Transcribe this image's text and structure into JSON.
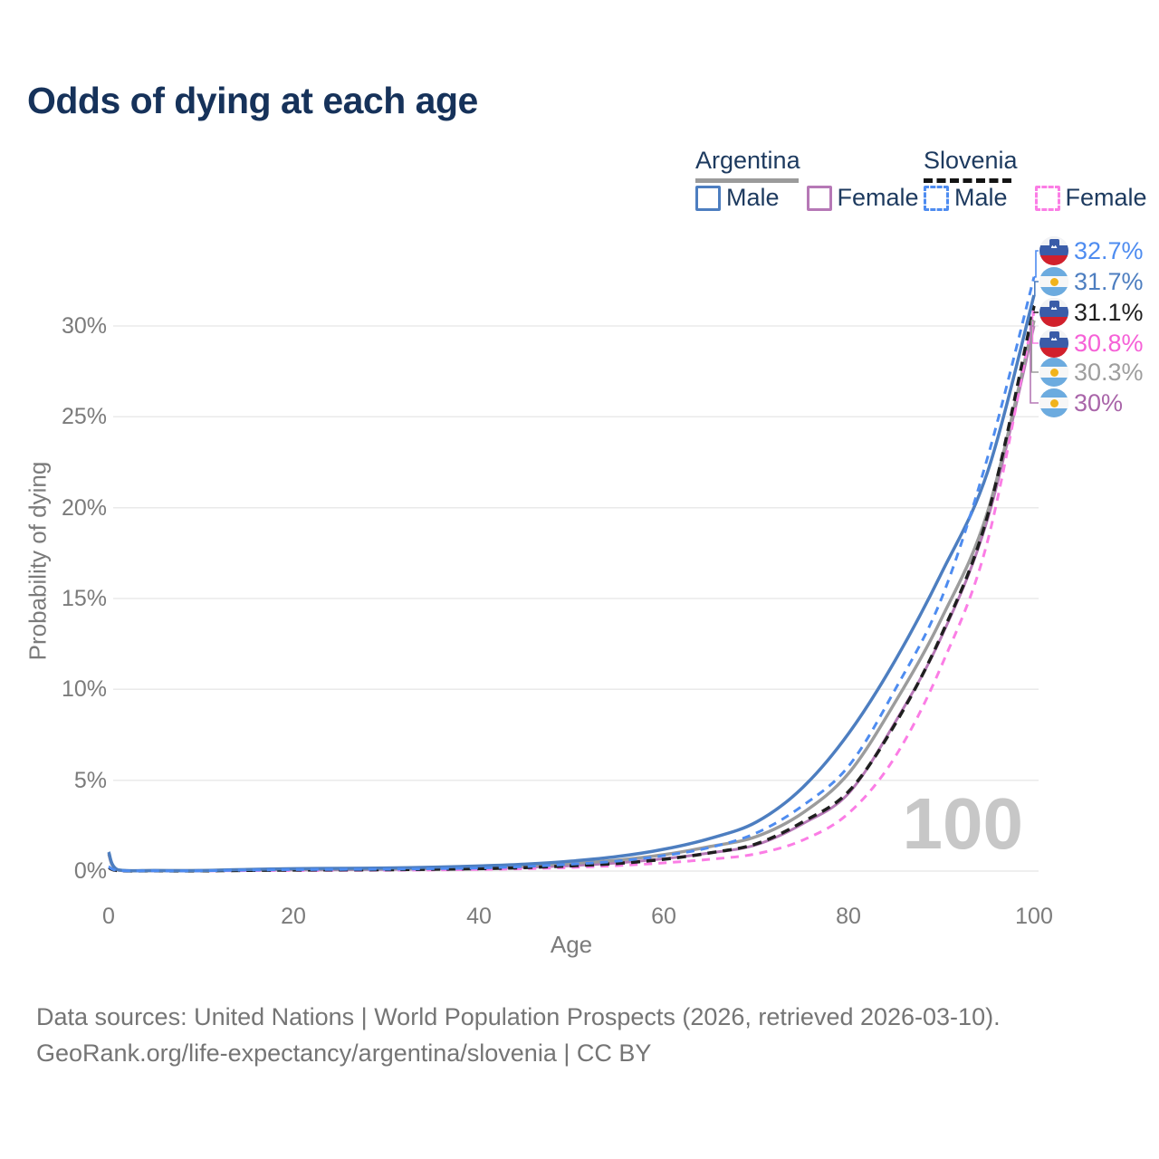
{
  "title": "Odds of dying at each age",
  "legend": {
    "groups": [
      {
        "name": "Argentina",
        "style": "solid-gray-underline",
        "items": [
          {
            "label": "Male",
            "color": "#4d7ec0",
            "line": "solid"
          },
          {
            "label": "Female",
            "color": "#b678b6",
            "line": "solid"
          }
        ]
      },
      {
        "name": "Slovenia",
        "style": "dashed-black-underline",
        "items": [
          {
            "label": "Male",
            "color": "#4e8cf0",
            "line": "dashed"
          },
          {
            "label": "Female",
            "color": "#fb7de5",
            "line": "dashed"
          }
        ]
      }
    ]
  },
  "chart_data": {
    "type": "line",
    "title": "Odds of dying at each age",
    "xlabel": "Age",
    "ylabel": "Probability of dying",
    "xlim": [
      0,
      100
    ],
    "ylim_pct": [
      0,
      33
    ],
    "grid": "horizontal-only",
    "legend_position": "top-right",
    "watermark": "100",
    "yticks": [
      {
        "label": "0%",
        "value": 0
      },
      {
        "label": "5%",
        "value": 5
      },
      {
        "label": "10%",
        "value": 10
      },
      {
        "label": "15%",
        "value": 15
      },
      {
        "label": "20%",
        "value": 20
      },
      {
        "label": "25%",
        "value": 25
      },
      {
        "label": "30%",
        "value": 30
      }
    ],
    "xticks": [
      {
        "label": "0",
        "value": 0
      },
      {
        "label": "20",
        "value": 20
      },
      {
        "label": "40",
        "value": 40
      },
      {
        "label": "60",
        "value": 60
      },
      {
        "label": "80",
        "value": 80
      },
      {
        "label": "100",
        "value": 100
      }
    ],
    "ages": [
      0,
      1,
      5,
      10,
      15,
      20,
      25,
      30,
      35,
      40,
      45,
      50,
      55,
      60,
      65,
      70,
      75,
      80,
      85,
      90,
      95,
      100
    ],
    "series": [
      {
        "key": "argentina_female",
        "name": "Argentina Female",
        "country": "Argentina",
        "sex": "Female",
        "color": "#b678b6",
        "width": 3,
        "dash": "",
        "values": [
          0.9,
          0.05,
          0.02,
          0.02,
          0.05,
          0.06,
          0.07,
          0.09,
          0.11,
          0.15,
          0.21,
          0.3,
          0.45,
          0.68,
          1.0,
          1.45,
          2.6,
          4.3,
          8.2,
          12.9,
          19.4,
          30.0
        ],
        "end_label": "30%"
      },
      {
        "key": "argentina_avg",
        "name": "Argentina (both sexes)",
        "country": "Argentina",
        "sex": "Both",
        "color": "#9c9c9c",
        "width": 3.5,
        "dash": "",
        "values": [
          0.95,
          0.06,
          0.025,
          0.025,
          0.07,
          0.1,
          0.11,
          0.13,
          0.16,
          0.21,
          0.3,
          0.42,
          0.6,
          0.9,
          1.35,
          1.9,
          3.2,
          5.4,
          9.3,
          13.9,
          19.8,
          30.3
        ],
        "end_label": "30.3%"
      },
      {
        "key": "slovenia_female",
        "name": "Slovenia Female",
        "country": "Slovenia",
        "sex": "Female",
        "color": "#fb7de5",
        "width": 3,
        "dash": "9 7",
        "values": [
          0.18,
          0.02,
          0.008,
          0.008,
          0.025,
          0.03,
          0.035,
          0.045,
          0.06,
          0.09,
          0.13,
          0.2,
          0.3,
          0.45,
          0.65,
          0.95,
          1.7,
          3.2,
          6.3,
          11.3,
          18.2,
          30.8
        ],
        "end_label": "30.8%"
      },
      {
        "key": "slovenia_avg",
        "name": "Slovenia (both sexes)",
        "country": "Slovenia",
        "sex": "Both",
        "color": "#1f1f1f",
        "width": 3.5,
        "dash": "10 7",
        "values": [
          0.2,
          0.025,
          0.01,
          0.01,
          0.035,
          0.055,
          0.065,
          0.075,
          0.1,
          0.13,
          0.19,
          0.29,
          0.42,
          0.65,
          1.0,
          1.5,
          2.7,
          4.4,
          8.1,
          13.0,
          19.6,
          31.1
        ],
        "end_label": "31.1%"
      },
      {
        "key": "argentina_male",
        "name": "Argentina Male",
        "country": "Argentina",
        "sex": "Male",
        "color": "#4d7ec0",
        "width": 3.5,
        "dash": "",
        "values": [
          1.05,
          0.07,
          0.03,
          0.03,
          0.09,
          0.13,
          0.15,
          0.17,
          0.21,
          0.28,
          0.38,
          0.55,
          0.8,
          1.2,
          1.8,
          2.7,
          4.6,
          7.6,
          11.6,
          16.4,
          22.0,
          31.7
        ],
        "end_label": "31.7%"
      },
      {
        "key": "slovenia_male",
        "name": "Slovenia Male",
        "country": "Slovenia",
        "sex": "Male",
        "color": "#4e8cf0",
        "width": 3,
        "dash": "9 7",
        "values": [
          0.25,
          0.03,
          0.012,
          0.012,
          0.05,
          0.08,
          0.09,
          0.1,
          0.13,
          0.17,
          0.25,
          0.38,
          0.55,
          0.85,
          1.3,
          2.1,
          3.6,
          5.8,
          10.0,
          15.0,
          22.8,
          32.7
        ],
        "end_label": "32.7%"
      }
    ],
    "end_labels": [
      {
        "text": "32.7%",
        "flag": "slovenia",
        "series_key": "slovenia_male",
        "color": "#4e8cf0"
      },
      {
        "text": "31.7%",
        "flag": "argentina",
        "series_key": "argentina_male",
        "color": "#4d7ec0"
      },
      {
        "text": "31.1%",
        "flag": "slovenia",
        "series_key": "slovenia_avg",
        "color": "#1f1f1f"
      },
      {
        "text": "30.8%",
        "flag": "slovenia",
        "series_key": "slovenia_female",
        "color": "#f661d7"
      },
      {
        "text": "30.3%",
        "flag": "argentina",
        "series_key": "argentina_avg",
        "color": "#9e9e9e"
      },
      {
        "text": "30%",
        "flag": "argentina",
        "series_key": "argentina_female",
        "color": "#a965a9"
      }
    ]
  },
  "footer": {
    "line1": "Data sources: United Nations | World Population Prospects (2026, retrieved 2026-03-10).",
    "line2": "GeoRank.org/life-expectancy/argentina/slovenia | CC BY"
  }
}
